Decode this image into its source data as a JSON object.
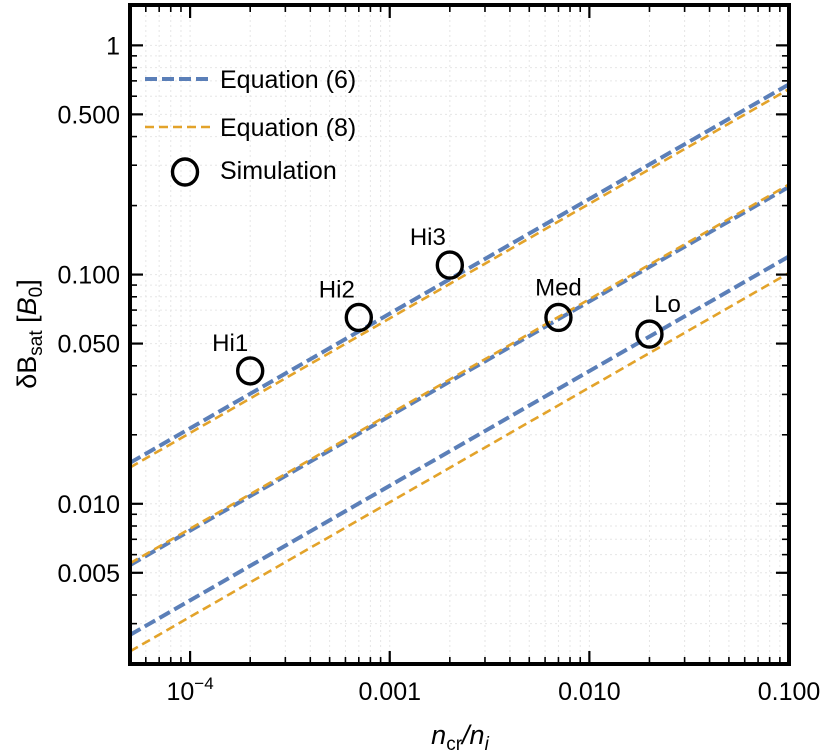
{
  "chart_data": {
    "type": "line",
    "scale": {
      "x": "log",
      "y": "log"
    },
    "xlim": [
      5e-05,
      0.1
    ],
    "ylim": [
      0.002,
      1.5
    ],
    "xlabel": {
      "main": "n",
      "sub": "cr",
      "sep": "/",
      "main2": "n",
      "sub2": "i"
    },
    "ylabel": {
      "prefix": "δB",
      "sub": "sat",
      "unit_open": " [",
      "unit": "B",
      "unit_sub": "0",
      "unit_close": "]"
    },
    "xticks": [
      {
        "value": 0.0001,
        "label": "10",
        "sup": "−4"
      },
      {
        "value": 0.001,
        "label": "0.001"
      },
      {
        "value": 0.01,
        "label": "0.010"
      },
      {
        "value": 0.1,
        "label": "0.100"
      }
    ],
    "yticks": [
      {
        "value": 0.005,
        "label": "0.005"
      },
      {
        "value": 0.01,
        "label": "0.010"
      },
      {
        "value": 0.05,
        "label": "0.050"
      },
      {
        "value": 0.1,
        "label": "0.100"
      },
      {
        "value": 0.5,
        "label": "0.500"
      },
      {
        "value": 1,
        "label": "1"
      }
    ],
    "legend": {
      "position": "top-left",
      "entries": [
        {
          "label": "Equation (6)",
          "style": "thick-dashed",
          "color": "#5b7fb8"
        },
        {
          "label": "Equation (8)",
          "style": "dashed",
          "color": "#e3a32a"
        },
        {
          "label": "Simulation",
          "style": "open-circle",
          "color": "#000000"
        }
      ]
    },
    "series": [
      {
        "name": "Equation (6)",
        "group": "Hi",
        "color": "#5b7fb8",
        "x": [
          5e-05,
          0.1
        ],
        "y": [
          0.0151,
          0.6765
        ]
      },
      {
        "name": "Equation (8)",
        "group": "Hi",
        "color": "#e3a32a",
        "x": [
          5e-05,
          0.1
        ],
        "y": [
          0.0144,
          0.6444
        ]
      },
      {
        "name": "Equation (6)",
        "group": "Med",
        "color": "#5b7fb8",
        "x": [
          5e-05,
          0.1
        ],
        "y": [
          0.0054,
          0.2415
        ]
      },
      {
        "name": "Equation (8)",
        "group": "Med",
        "color": "#e3a32a",
        "x": [
          5e-05,
          0.1
        ],
        "y": [
          0.0055,
          0.2475
        ]
      },
      {
        "name": "Equation (6)",
        "group": "Lo",
        "color": "#5b7fb8",
        "x": [
          5e-05,
          0.1
        ],
        "y": [
          0.00268,
          0.12
        ]
      },
      {
        "name": "Equation (8)",
        "group": "Lo",
        "color": "#e3a32a",
        "x": [
          5e-05,
          0.1
        ],
        "y": [
          0.00227,
          0.1017
        ]
      }
    ],
    "points": [
      {
        "name": "Hi1",
        "x": 0.0002,
        "y": 0.038
      },
      {
        "name": "Hi2",
        "x": 0.0007,
        "y": 0.065
      },
      {
        "name": "Hi3",
        "x": 0.002,
        "y": 0.11
      },
      {
        "name": "Med",
        "x": 0.007,
        "y": 0.065
      },
      {
        "name": "Lo",
        "x": 0.02,
        "y": 0.055
      }
    ]
  }
}
